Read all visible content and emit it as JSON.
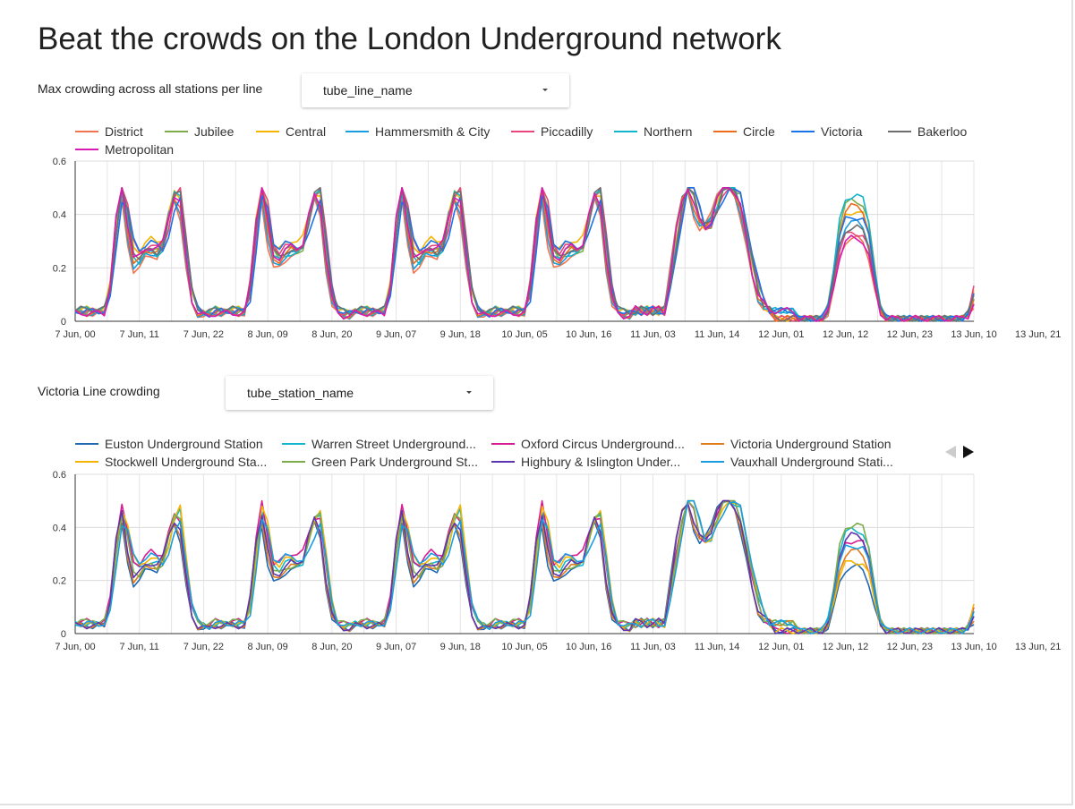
{
  "page": {
    "title": "Beat the crowds on the London Underground network"
  },
  "line_section": {
    "label": "Max crowding across all stations per line",
    "dropdown_value": "tube_line_name"
  },
  "station_section": {
    "label": "Victoria Line crowding",
    "dropdown_value": "tube_station_name"
  },
  "chart_data": [
    {
      "type": "line",
      "x_tick_labels": [
        "7 Jun, 00",
        "7 Jun, 11",
        "7 Jun, 22",
        "8 Jun, 09",
        "8 Jun, 20",
        "9 Jun, 07",
        "9 Jun, 18",
        "10 Jun, 05",
        "10 Jun, 16",
        "11 Jun, 03",
        "11 Jun, 14",
        "12 Jun, 01",
        "12 Jun, 12",
        "12 Jun, 23",
        "13 Jun, 10",
        "13 Jun, 21"
      ],
      "x_tick_every_hours": 11,
      "x_range_hours": [
        0,
        154
      ],
      "ylim": [
        0,
        0.6
      ],
      "y_ticks": [
        0,
        0.2,
        0.4,
        0.6
      ],
      "grid": true,
      "legend_position": "top",
      "series": [
        {
          "name": "District",
          "color": "#f4734f"
        },
        {
          "name": "Jubilee",
          "color": "#7cad4a"
        },
        {
          "name": "Central",
          "color": "#f4b400"
        },
        {
          "name": "Hammersmith & City",
          "color": "#1a9de0"
        },
        {
          "name": "Piccadilly",
          "color": "#e8467c"
        },
        {
          "name": "Northern",
          "color": "#12b5cb"
        },
        {
          "name": "Circle",
          "color": "#ec6c1c"
        },
        {
          "name": "Victoria",
          "color": "#1a73e8"
        },
        {
          "name": "Bakerloo",
          "color": "#6e6e6e"
        },
        {
          "name": "Metropolitan",
          "color": "#d81bb0"
        }
      ]
    },
    {
      "type": "line",
      "x_tick_labels": [
        "7 Jun, 00",
        "7 Jun, 11",
        "7 Jun, 22",
        "8 Jun, 09",
        "8 Jun, 20",
        "9 Jun, 07",
        "9 Jun, 18",
        "10 Jun, 05",
        "10 Jun, 16",
        "11 Jun, 03",
        "11 Jun, 14",
        "12 Jun, 01",
        "12 Jun, 12",
        "12 Jun, 23",
        "13 Jun, 10",
        "13 Jun, 21"
      ],
      "x_tick_every_hours": 11,
      "x_range_hours": [
        0,
        154
      ],
      "ylim": [
        0,
        0.6
      ],
      "y_ticks": [
        0,
        0.2,
        0.4,
        0.6
      ],
      "grid": true,
      "legend_position": "top",
      "series": [
        {
          "name": "Euston Underground Station",
          "color": "#1f68b4"
        },
        {
          "name": "Warren Street Underground...",
          "color": "#12b5cb"
        },
        {
          "name": "Oxford Circus Underground...",
          "color": "#d81b92"
        },
        {
          "name": "Victoria Underground Station",
          "color": "#e07b1a"
        },
        {
          "name": "Stockwell Underground Sta...",
          "color": "#f4b400"
        },
        {
          "name": "Green Park Underground St...",
          "color": "#7cad4a"
        },
        {
          "name": "Highbury & Islington Under...",
          "color": "#5e35b1"
        },
        {
          "name": "Vauxhall Underground Stati...",
          "color": "#1a9de0"
        }
      ]
    }
  ]
}
